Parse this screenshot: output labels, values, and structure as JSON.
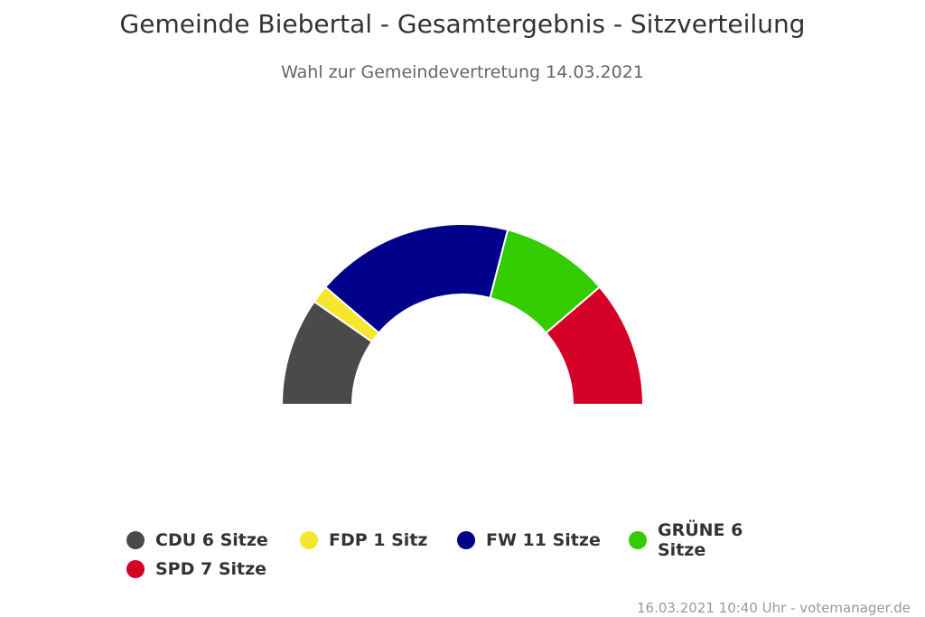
{
  "chart_data": {
    "type": "pie",
    "variant": "parliament-semicircle",
    "title": "Gemeinde Biebertal - Gesamtergebnis - Sitzverteilung",
    "subtitle": "Wahl zur Gemeindevertretung 14.03.2021",
    "series": [
      {
        "name": "CDU",
        "value": 6,
        "label": "CDU 6 Sitze",
        "color": "#4a4a4a"
      },
      {
        "name": "FDP",
        "value": 1,
        "label": "FDP 1 Sitz",
        "color": "#f5e62e"
      },
      {
        "name": "FW",
        "value": 11,
        "label": "FW 11 Sitze",
        "color": "#00008b"
      },
      {
        "name": "GRÜNE",
        "value": 6,
        "label": "GRÜNE 6 Sitze",
        "color": "#33cc00"
      },
      {
        "name": "SPD",
        "value": 7,
        "label": "SPD 7 Sitze",
        "color": "#d50027"
      }
    ],
    "legend_position": "bottom"
  },
  "credits": "16.03.2021 10:40 Uhr - votemanager.de"
}
